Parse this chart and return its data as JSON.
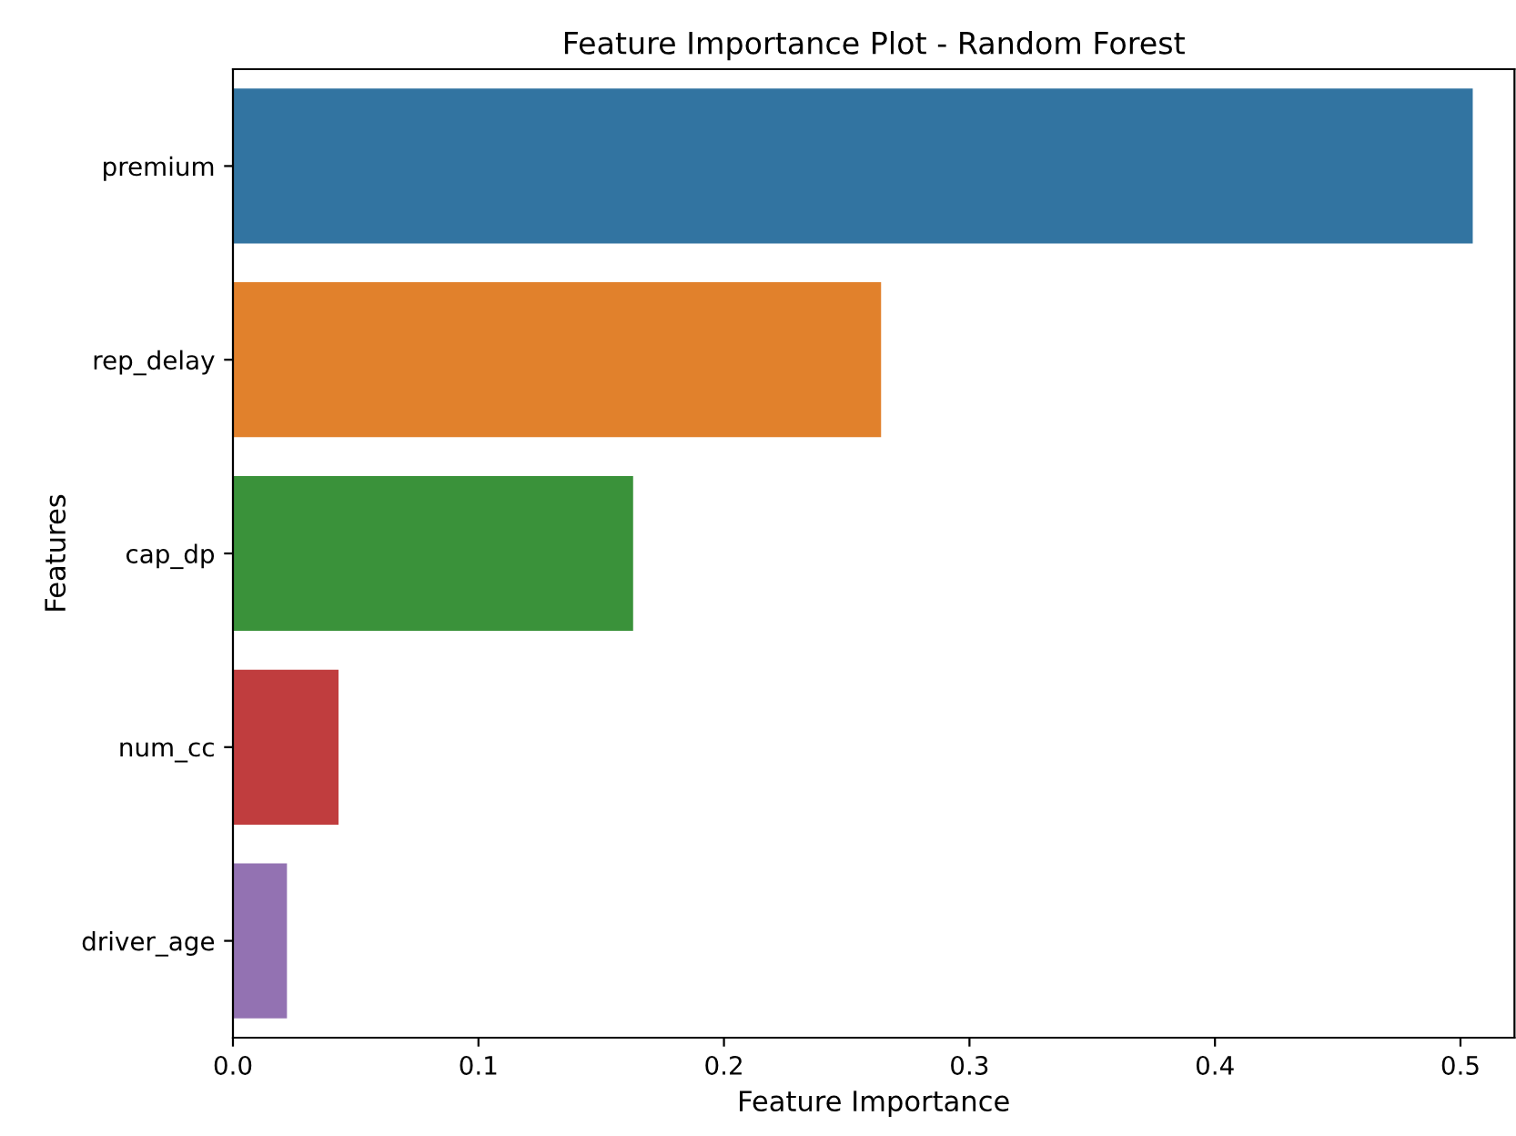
{
  "chart_data": {
    "type": "bar",
    "orientation": "horizontal",
    "title": "Feature Importance Plot - Random Forest",
    "xlabel": "Feature Importance",
    "ylabel": "Features",
    "categories": [
      "premium",
      "rep_delay",
      "cap_dp",
      "num_cc",
      "driver_age"
    ],
    "values": [
      0.505,
      0.264,
      0.163,
      0.043,
      0.022
    ],
    "colors": [
      "#3274a1",
      "#e1812c",
      "#3a923a",
      "#c03d3e",
      "#9372b2"
    ],
    "xlim": [
      0,
      0.522
    ],
    "xticks": [
      {
        "value": 0,
        "label": "0.0"
      },
      0.1,
      0.2,
      0.3,
      0.4,
      0.5
    ],
    "grid": false
  }
}
